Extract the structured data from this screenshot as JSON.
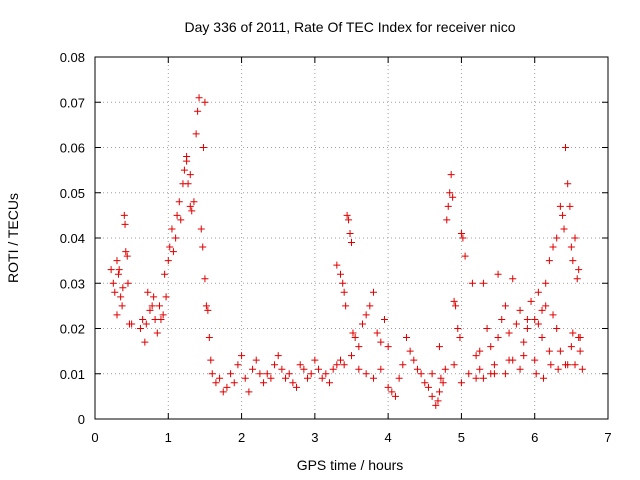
{
  "chart_data": {
    "type": "scatter",
    "title": "Day 336 of 2011, Rate Of TEC Index for receiver nico",
    "xlabel": "GPS time / hours",
    "ylabel": "ROTI / TECUs",
    "xlim": [
      0,
      7
    ],
    "ylim": [
      0,
      0.08
    ],
    "grid": true,
    "marker": "+",
    "color": "#e00000",
    "x_ticks": [
      0,
      1,
      2,
      3,
      4,
      5,
      6,
      7
    ],
    "x_tick_labels": [
      "0",
      "1",
      "2",
      "3",
      "4",
      "5",
      "6",
      "7"
    ],
    "y_ticks": [
      0,
      0.01,
      0.02,
      0.03,
      0.04,
      0.05,
      0.06,
      0.07,
      0.08
    ],
    "y_tick_labels": [
      "0",
      "0.01",
      "0.02",
      "0.03",
      "0.04",
      "0.05",
      "0.06",
      "0.07",
      "0.08"
    ],
    "series": [
      {
        "name": "ROTI",
        "x": [
          0.22,
          0.25,
          0.27,
          0.3,
          0.32,
          0.35,
          0.37,
          0.4,
          0.42,
          0.44,
          0.47,
          0.5,
          0.3,
          0.33,
          0.38,
          0.41,
          0.45,
          0.62,
          0.65,
          0.68,
          0.7,
          0.72,
          0.75,
          0.78,
          0.8,
          0.82,
          0.85,
          0.88,
          0.9,
          0.93,
          0.95,
          0.97,
          1.0,
          1.02,
          1.05,
          1.07,
          1.1,
          1.12,
          1.15,
          1.17,
          1.2,
          1.22,
          1.25,
          1.27,
          1.3,
          1.32,
          1.35,
          1.38,
          1.4,
          1.42,
          1.45,
          1.47,
          1.5,
          1.52,
          1.54,
          1.56,
          1.58,
          1.6,
          1.25,
          1.3,
          1.48,
          1.5,
          1.65,
          1.7,
          1.75,
          1.8,
          1.85,
          1.9,
          1.95,
          2.0,
          2.05,
          2.1,
          2.15,
          2.2,
          2.25,
          2.3,
          2.35,
          2.4,
          2.45,
          2.5,
          2.55,
          2.6,
          2.65,
          2.7,
          2.75,
          2.8,
          2.85,
          2.9,
          2.95,
          3.0,
          3.05,
          3.1,
          3.15,
          3.2,
          3.25,
          3.3,
          3.35,
          3.3,
          3.35,
          3.38,
          3.4,
          3.42,
          3.44,
          3.46,
          3.48,
          3.5,
          3.52,
          3.55,
          3.6,
          3.65,
          3.7,
          3.75,
          3.8,
          3.85,
          3.9,
          3.95,
          4.0,
          3.4,
          3.5,
          3.6,
          3.7,
          3.8,
          3.9,
          4.0,
          4.05,
          4.1,
          4.15,
          4.2,
          4.25,
          4.3,
          4.35,
          4.4,
          4.45,
          4.5,
          4.55,
          4.6,
          4.65,
          4.68,
          4.7,
          4.72,
          4.75,
          4.78,
          4.8,
          4.82,
          4.84,
          4.86,
          4.88,
          4.9,
          4.92,
          4.95,
          4.98,
          5.0,
          5.02,
          5.05,
          4.6,
          4.7,
          4.9,
          5.0,
          5.1,
          5.15,
          5.2,
          5.25,
          5.3,
          5.35,
          5.4,
          5.45,
          5.5,
          5.55,
          5.6,
          5.65,
          5.7,
          5.75,
          5.8,
          5.85,
          5.9,
          5.95,
          6.0,
          6.05,
          6.1,
          6.15,
          6.2,
          6.25,
          6.3,
          6.35,
          6.38,
          6.4,
          6.42,
          6.45,
          6.48,
          6.5,
          6.52,
          6.55,
          6.58,
          6.6,
          6.62,
          6.65,
          5.2,
          5.4,
          5.6,
          5.8,
          6.0,
          6.1,
          6.2,
          6.3,
          6.5,
          6.6,
          5.3,
          5.5,
          5.7,
          5.9,
          6.05,
          6.15,
          6.25,
          6.35,
          6.45,
          6.55,
          5.25,
          5.45,
          5.65,
          5.85,
          6.02,
          6.12,
          6.22,
          6.32,
          6.42,
          6.52,
          6.62
        ],
        "y": [
          0.033,
          0.03,
          0.028,
          0.035,
          0.032,
          0.027,
          0.025,
          0.045,
          0.037,
          0.036,
          0.021,
          0.021,
          0.023,
          0.033,
          0.029,
          0.043,
          0.03,
          0.02,
          0.022,
          0.017,
          0.021,
          0.028,
          0.024,
          0.025,
          0.027,
          0.022,
          0.019,
          0.025,
          0.022,
          0.023,
          0.032,
          0.027,
          0.035,
          0.038,
          0.042,
          0.037,
          0.04,
          0.045,
          0.048,
          0.044,
          0.052,
          0.055,
          0.058,
          0.052,
          0.047,
          0.046,
          0.048,
          0.063,
          0.068,
          0.071,
          0.042,
          0.038,
          0.031,
          0.025,
          0.024,
          0.018,
          0.013,
          0.01,
          0.057,
          0.054,
          0.06,
          0.07,
          0.008,
          0.009,
          0.006,
          0.007,
          0.01,
          0.008,
          0.012,
          0.014,
          0.009,
          0.006,
          0.011,
          0.013,
          0.01,
          0.008,
          0.01,
          0.009,
          0.012,
          0.014,
          0.011,
          0.009,
          0.01,
          0.008,
          0.007,
          0.012,
          0.011,
          0.009,
          0.01,
          0.013,
          0.011,
          0.009,
          0.01,
          0.008,
          0.011,
          0.012,
          0.013,
          0.034,
          0.032,
          0.03,
          0.028,
          0.025,
          0.045,
          0.044,
          0.041,
          0.039,
          0.019,
          0.018,
          0.016,
          0.021,
          0.023,
          0.025,
          0.028,
          0.019,
          0.017,
          0.022,
          0.016,
          0.012,
          0.014,
          0.011,
          0.01,
          0.009,
          0.011,
          0.007,
          0.006,
          0.005,
          0.009,
          0.012,
          0.018,
          0.015,
          0.013,
          0.011,
          0.01,
          0.008,
          0.007,
          0.005,
          0.003,
          0.004,
          0.006,
          0.009,
          0.008,
          0.011,
          0.044,
          0.047,
          0.05,
          0.054,
          0.049,
          0.026,
          0.025,
          0.02,
          0.018,
          0.041,
          0.04,
          0.036,
          0.01,
          0.016,
          0.012,
          0.008,
          0.01,
          0.03,
          0.014,
          0.011,
          0.009,
          0.02,
          0.016,
          0.012,
          0.018,
          0.022,
          0.025,
          0.019,
          0.013,
          0.021,
          0.024,
          0.017,
          0.02,
          0.026,
          0.022,
          0.028,
          0.024,
          0.03,
          0.035,
          0.038,
          0.04,
          0.047,
          0.045,
          0.042,
          0.06,
          0.052,
          0.047,
          0.038,
          0.035,
          0.04,
          0.031,
          0.018,
          0.015,
          0.011,
          0.009,
          0.01,
          0.01,
          0.011,
          0.013,
          0.018,
          0.015,
          0.02,
          0.016,
          0.033,
          0.03,
          0.032,
          0.031,
          0.022,
          0.021,
          0.025,
          0.023,
          0.015,
          0.012,
          0.012,
          0.015,
          0.01,
          0.013,
          0.014,
          0.01,
          0.009,
          0.012,
          0.011,
          0.012,
          0.019,
          0.018
        ]
      }
    ]
  }
}
